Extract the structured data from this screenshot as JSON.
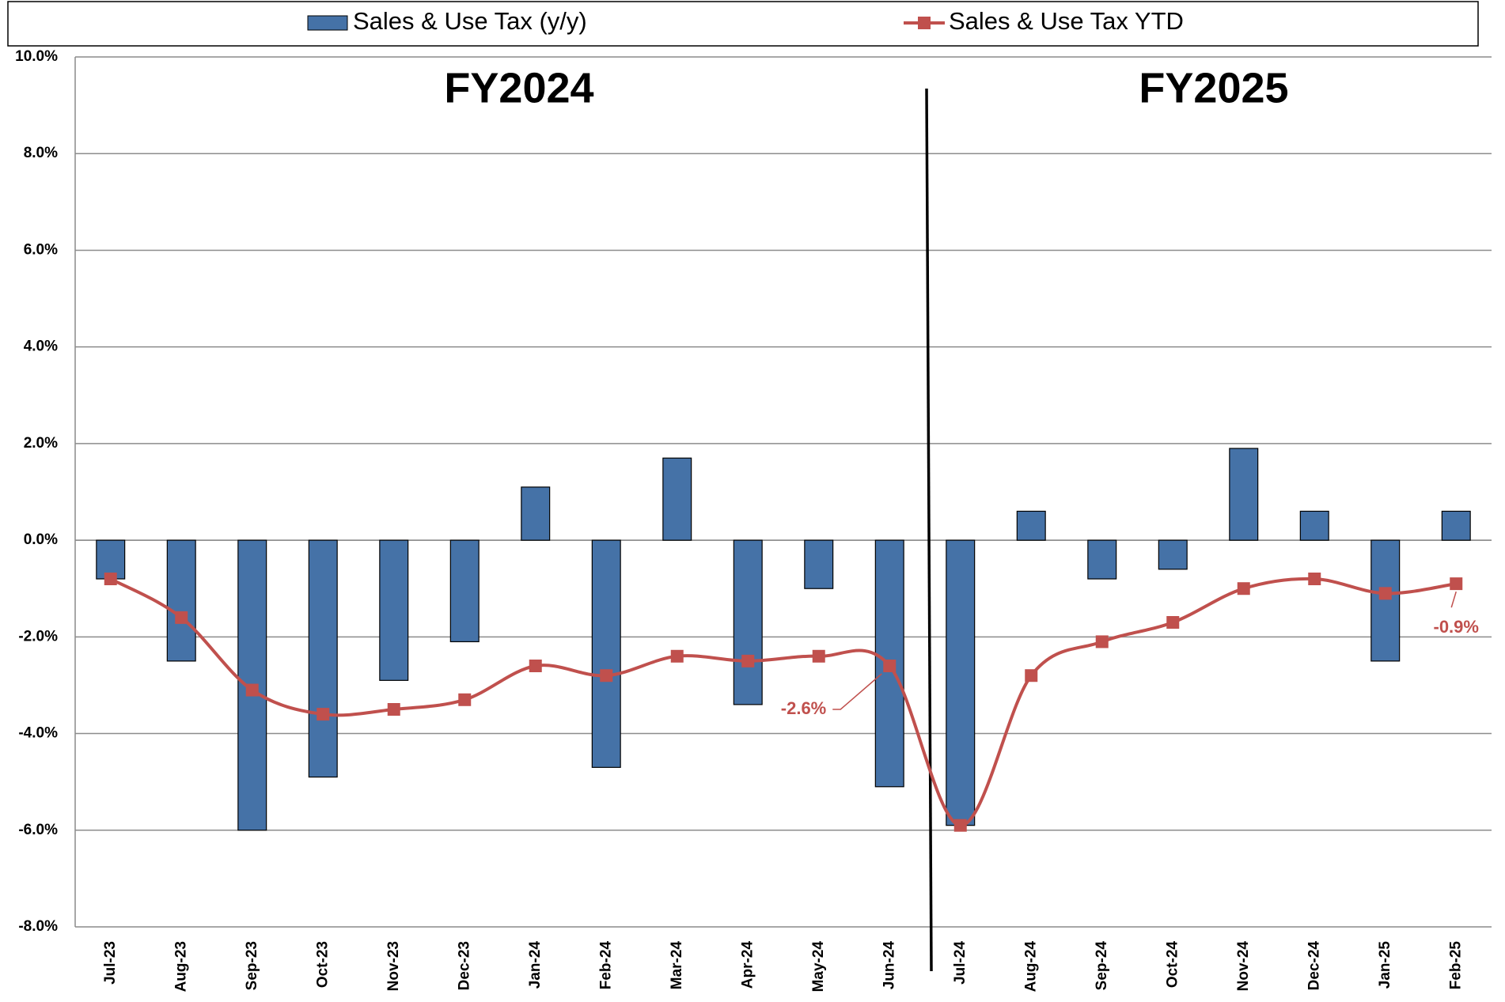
{
  "chart_data": {
    "type": "bar_line",
    "annotations": [
      "FY2024",
      "FY2025"
    ],
    "categories": [
      "Jul-23",
      "Aug-23",
      "Sep-23",
      "Oct-23",
      "Nov-23",
      "Dec-23",
      "Jan-24",
      "Feb-24",
      "Mar-24",
      "Apr-24",
      "May-24",
      "Jun-24",
      "Jul-24",
      "Aug-24",
      "Sep-24",
      "Oct-24",
      "Nov-24",
      "Dec-24",
      "Jan-25",
      "Feb-25"
    ],
    "series": [
      {
        "name": "Sales & Use Tax (y/y)",
        "type": "bar",
        "color": "#4572a7",
        "values": [
          -0.8,
          -2.5,
          -6.0,
          -4.9,
          -2.9,
          -2.1,
          1.1,
          -4.7,
          1.7,
          -3.4,
          -1.0,
          -5.1,
          -5.9,
          0.6,
          -0.8,
          -0.6,
          1.9,
          0.6,
          -2.5,
          0.6
        ]
      },
      {
        "name": "Sales & Use Tax YTD",
        "type": "line",
        "color": "#c0504d",
        "values": [
          -0.8,
          -1.6,
          -3.1,
          -3.6,
          -3.5,
          -3.3,
          -2.6,
          -2.8,
          -2.4,
          -2.5,
          -2.4,
          -2.6,
          -5.9,
          -2.8,
          -2.1,
          -1.7,
          -1.0,
          -0.8,
          -1.1,
          -0.9
        ],
        "value_labels": [
          null,
          null,
          null,
          null,
          null,
          null,
          null,
          null,
          null,
          null,
          null,
          "-2.6%",
          null,
          null,
          null,
          null,
          null,
          null,
          null,
          "-0.9%"
        ]
      }
    ],
    "ylim": [
      -8,
      10
    ],
    "yticks": [
      {
        "value": -8,
        "label": "-8.0%"
      },
      {
        "value": -6,
        "label": "-6.0%"
      },
      {
        "value": -4,
        "label": "-4.0%"
      },
      {
        "value": -2,
        "label": "-2.0%"
      },
      {
        "value": 0,
        "label": "0.0%"
      },
      {
        "value": 2,
        "label": "2.0%"
      },
      {
        "value": 4,
        "label": "4.0%"
      },
      {
        "value": 6,
        "label": "6.0%"
      },
      {
        "value": 8,
        "label": "8.0%"
      },
      {
        "value": 10,
        "label": "10.0%"
      }
    ],
    "grid": true
  }
}
